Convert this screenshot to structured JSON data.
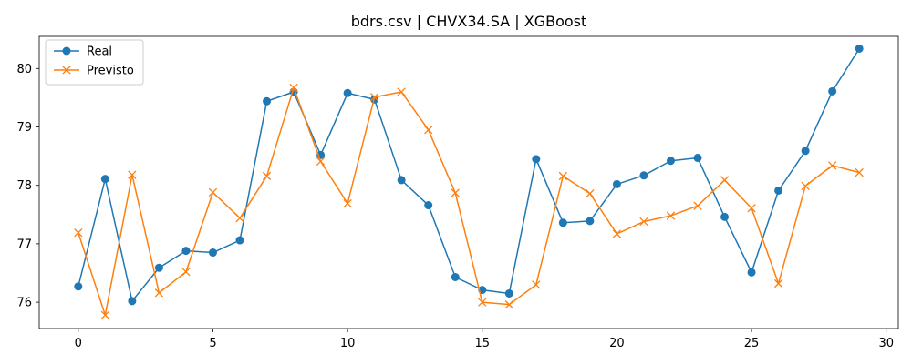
{
  "chart_data": {
    "type": "line",
    "title": "bdrs.csv | CHVX34.SA | XGBoost",
    "xlabel": "",
    "ylabel": "",
    "x": [
      0,
      1,
      2,
      3,
      4,
      5,
      6,
      7,
      8,
      9,
      10,
      11,
      12,
      13,
      14,
      15,
      16,
      17,
      18,
      19,
      20,
      21,
      22,
      23,
      24,
      25,
      26,
      27,
      28,
      29
    ],
    "xlim": [
      -1.45,
      30.45
    ],
    "ylim": [
      75.55,
      80.55
    ],
    "xticks": [
      0,
      5,
      10,
      15,
      20,
      25,
      30
    ],
    "yticks": [
      76,
      77,
      78,
      79,
      80
    ],
    "grid": false,
    "legend_position": "top-left",
    "series": [
      {
        "name": "Real",
        "color": "#1f77b4",
        "marker": "circle",
        "values": [
          76.27,
          78.11,
          76.02,
          76.59,
          76.88,
          76.85,
          77.06,
          79.44,
          79.6,
          78.52,
          79.58,
          79.47,
          78.09,
          77.66,
          76.43,
          76.21,
          76.15,
          78.45,
          77.36,
          77.39,
          78.02,
          78.17,
          78.42,
          78.47,
          77.46,
          76.51,
          77.91,
          78.59,
          79.61,
          80.34
        ]
      },
      {
        "name": "Previsto",
        "color": "#ff7f0e",
        "marker": "x",
        "values": [
          77.19,
          75.78,
          78.18,
          76.16,
          76.52,
          77.88,
          77.44,
          78.16,
          79.67,
          78.41,
          77.69,
          79.51,
          79.6,
          78.95,
          77.87,
          76.0,
          75.96,
          76.3,
          78.16,
          77.86,
          77.17,
          77.38,
          77.48,
          77.65,
          78.09,
          77.61,
          76.32,
          77.99,
          78.34,
          78.22
        ]
      }
    ]
  }
}
